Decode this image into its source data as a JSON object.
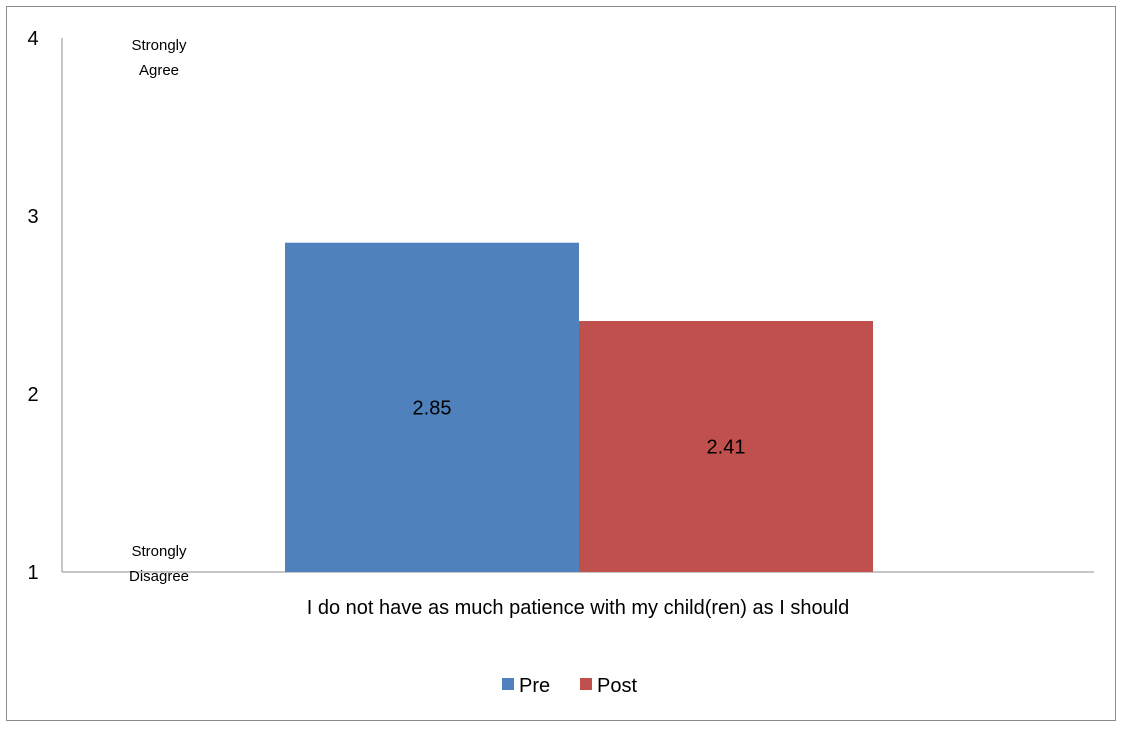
{
  "chart_data": {
    "type": "bar",
    "categories": [
      "I do not have as much patience with my child(ren) as I should"
    ],
    "series": [
      {
        "name": "Pre",
        "values": [
          2.85
        ],
        "color": "#4f81bd"
      },
      {
        "name": "Post",
        "values": [
          2.41
        ],
        "color": "#c0504d"
      }
    ],
    "data_labels": [
      "2.85",
      "2.41"
    ],
    "yticks": [
      "1",
      "2",
      "3",
      "4"
    ],
    "ylim": [
      1,
      4
    ],
    "y_anchor_labels": {
      "top": [
        "Strongly",
        "Agree"
      ],
      "bottom": [
        "Strongly",
        "Disagree"
      ]
    },
    "legend_placement": "bottom",
    "grid": false
  }
}
